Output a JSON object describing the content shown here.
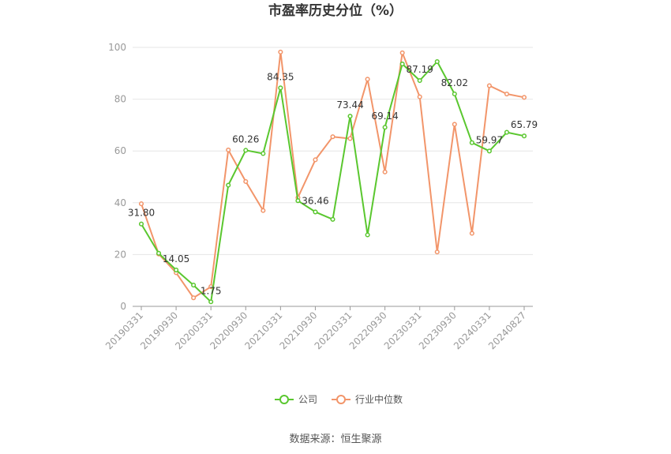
{
  "chart_data": {
    "type": "line",
    "title": "市盈率历史分位（%）",
    "source": "数据来源：恒生聚源",
    "ylim": [
      0,
      100
    ],
    "yticks": [
      0,
      20,
      40,
      60,
      80,
      100
    ],
    "x": [
      "20190331",
      "20190630",
      "20190930",
      "20191231",
      "20200331",
      "20200630",
      "20200930",
      "20201231",
      "20210331",
      "20210630",
      "20210930",
      "20211231",
      "20220331",
      "20220630",
      "20220930",
      "20221231",
      "20230331",
      "20230630",
      "20230930",
      "20231231",
      "20240331",
      "20240630",
      "20240827"
    ],
    "xtick_labels": [
      "20190331",
      "20190930",
      "20200331",
      "20200930",
      "20210331",
      "20210930",
      "20220331",
      "20220930",
      "20230331",
      "20230930",
      "20240331",
      "20240827"
    ],
    "xtick_index": [
      0,
      2,
      4,
      6,
      8,
      10,
      12,
      14,
      16,
      18,
      20,
      22
    ],
    "series": [
      {
        "name": "公司",
        "color": "#5ac72f",
        "values": [
          31.8,
          20.5,
          14.05,
          8.2,
          1.75,
          46.8,
          60.26,
          59.0,
          84.35,
          40.8,
          36.46,
          33.6,
          73.44,
          27.6,
          69.14,
          93.6,
          87.19,
          94.5,
          82.02,
          63.2,
          59.97,
          67.2,
          65.79
        ],
        "labels": {
          "0": "31.80",
          "2": "14.05",
          "4": "1.75",
          "6": "60.26",
          "8": "84.35",
          "10": "36.46",
          "12": "73.44",
          "14": "69.14",
          "16": "87.19",
          "18": "82.02",
          "20": "59.97",
          "22": "65.79"
        }
      },
      {
        "name": "行业中位数",
        "color": "#f2956a",
        "values": [
          39.6,
          20.2,
          13.0,
          3.3,
          7.6,
          60.4,
          48.2,
          37.0,
          98.2,
          42.0,
          56.6,
          65.5,
          64.8,
          87.7,
          51.9,
          97.9,
          80.9,
          21.0,
          70.3,
          28.2,
          85.2,
          82.0,
          80.7
        ]
      }
    ],
    "legend_position": "bottom-center",
    "grid": true
  }
}
